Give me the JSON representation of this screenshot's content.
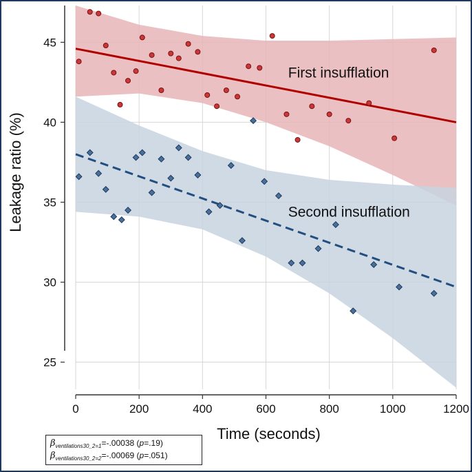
{
  "chart_data": {
    "type": "scatter",
    "xlabel": "Time (seconds)",
    "ylabel": "Leakage ratio (%)",
    "xlim": [
      0,
      1200
    ],
    "ylim": [
      23.3,
      47.3
    ],
    "xticks": [
      0,
      200,
      400,
      600,
      800,
      1000,
      1200
    ],
    "yticks": [
      25,
      30,
      35,
      40,
      45
    ],
    "grid": true,
    "series": [
      {
        "name": "First insufflation",
        "marker": "circle",
        "color": "#c8383a",
        "band_color": "#e8b5b7",
        "line_color": "#b00000",
        "line_style": "solid",
        "fit": {
          "x": [
            0,
            1200
          ],
          "y": [
            44.6,
            40.0
          ]
        },
        "ci_upper": [
          [
            0,
            47.3
          ],
          [
            200,
            46.1
          ],
          [
            400,
            45.4
          ],
          [
            600,
            45.1
          ],
          [
            800,
            45.1
          ],
          [
            1000,
            45.2
          ],
          [
            1200,
            45.3
          ]
        ],
        "ci_lower": [
          [
            0,
            41.6
          ],
          [
            200,
            41.8
          ],
          [
            400,
            41.2
          ],
          [
            600,
            40.0
          ],
          [
            800,
            38.5
          ],
          [
            1000,
            36.7
          ],
          [
            1200,
            34.8
          ]
        ],
        "points": [
          [
            10,
            43.8
          ],
          [
            45,
            46.9
          ],
          [
            72,
            46.8
          ],
          [
            95,
            44.8
          ],
          [
            120,
            43.1
          ],
          [
            140,
            41.1
          ],
          [
            165,
            42.6
          ],
          [
            190,
            43.2
          ],
          [
            210,
            45.3
          ],
          [
            240,
            44.2
          ],
          [
            270,
            42.0
          ],
          [
            300,
            44.3
          ],
          [
            325,
            44.0
          ],
          [
            355,
            44.9
          ],
          [
            385,
            44.4
          ],
          [
            415,
            41.7
          ],
          [
            445,
            41.0
          ],
          [
            475,
            42.0
          ],
          [
            510,
            41.6
          ],
          [
            545,
            43.5
          ],
          [
            580,
            43.4
          ],
          [
            620,
            45.4
          ],
          [
            665,
            40.5
          ],
          [
            700,
            38.9
          ],
          [
            745,
            41.0
          ],
          [
            800,
            40.5
          ],
          [
            860,
            40.1
          ],
          [
            925,
            41.2
          ],
          [
            1005,
            39.0
          ],
          [
            1130,
            44.5
          ]
        ]
      },
      {
        "name": "Second insufflation",
        "marker": "diamond",
        "color": "#4a6f9a",
        "band_color": "#c7d4e0",
        "line_color": "#234f80",
        "line_style": "dashed",
        "fit": {
          "x": [
            0,
            1200
          ],
          "y": [
            38.0,
            29.7
          ]
        },
        "ci_upper": [
          [
            0,
            41.6
          ],
          [
            200,
            39.8
          ],
          [
            400,
            38.2
          ],
          [
            600,
            37.0
          ],
          [
            800,
            36.4
          ],
          [
            1000,
            36.1
          ],
          [
            1200,
            35.9
          ]
        ],
        "ci_lower": [
          [
            0,
            34.4
          ],
          [
            200,
            34.1
          ],
          [
            400,
            33.3
          ],
          [
            600,
            31.6
          ],
          [
            800,
            29.3
          ],
          [
            1000,
            26.5
          ],
          [
            1200,
            23.4
          ]
        ],
        "points": [
          [
            10,
            36.6
          ],
          [
            45,
            38.1
          ],
          [
            72,
            36.8
          ],
          [
            95,
            35.8
          ],
          [
            120,
            34.1
          ],
          [
            145,
            33.9
          ],
          [
            165,
            34.5
          ],
          [
            190,
            37.8
          ],
          [
            210,
            38.1
          ],
          [
            240,
            35.6
          ],
          [
            270,
            37.7
          ],
          [
            300,
            36.5
          ],
          [
            325,
            38.4
          ],
          [
            355,
            37.8
          ],
          [
            385,
            36.7
          ],
          [
            420,
            34.4
          ],
          [
            455,
            34.8
          ],
          [
            490,
            37.3
          ],
          [
            525,
            32.6
          ],
          [
            560,
            40.1
          ],
          [
            595,
            36.3
          ],
          [
            640,
            35.4
          ],
          [
            680,
            31.2
          ],
          [
            715,
            31.2
          ],
          [
            765,
            32.1
          ],
          [
            820,
            33.6
          ],
          [
            875,
            28.2
          ],
          [
            940,
            31.1
          ],
          [
            1020,
            29.7
          ],
          [
            1130,
            29.3
          ]
        ]
      }
    ],
    "annotations": [
      {
        "text": "First insufflation",
        "x": 670,
        "y": 42.8
      },
      {
        "text": "Second insufflation",
        "x": 670,
        "y": 34.1
      }
    ]
  },
  "legend": {
    "line1": {
      "beta": "β",
      "sub": "ventilations30_2=1",
      "value": "=-.00038 (",
      "p": "p",
      "p_value": "=.19)"
    },
    "line2": {
      "beta": "β",
      "sub": "ventilations30_2=2",
      "value": "=-.00069 (",
      "p": "p",
      "p_value": "=.051)"
    }
  }
}
